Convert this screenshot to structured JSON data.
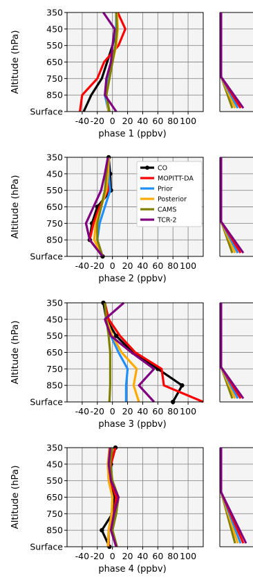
{
  "chart_data": [
    {
      "type": "line",
      "title": "",
      "xlabel": "phase 1 (ppbv)",
      "ylabel": "Altitude (hPa)",
      "xlim": [
        -60,
        120
      ],
      "levels": [
        "Surface",
        "850",
        "750",
        "650",
        "550",
        "450",
        "350"
      ],
      "xticks": [
        -40,
        -20,
        0,
        20,
        40,
        60,
        80,
        100
      ],
      "grid": true,
      "legend": "none",
      "series": [
        {
          "name": "CO",
          "color": "#000000",
          "marker": "none",
          "values": [
            -38,
            -28,
            -14,
            -7,
            0,
            5,
            5
          ]
        },
        {
          "name": "MOPITT-DA",
          "color": "#ff0000",
          "values": [
            -43,
            -40,
            -20,
            -11,
            8,
            17,
            7
          ]
        },
        {
          "name": "Prior",
          "color": "#1f8fff",
          "values": [
            -5,
            -10,
            -5,
            0,
            4,
            5,
            5
          ]
        },
        {
          "name": "Posterior",
          "color": "#ffaa00",
          "values": [
            -5,
            -8,
            -4,
            0,
            5,
            7,
            6
          ]
        },
        {
          "name": "CAMS",
          "color": "#808000",
          "values": [
            -4,
            -8,
            -4,
            0,
            4,
            6,
            5
          ]
        },
        {
          "name": "TCR-2",
          "color": "#800080",
          "values": [
            5,
            -10,
            -8,
            -2,
            0,
            3,
            -12
          ]
        }
      ]
    },
    {
      "type": "line",
      "title": "",
      "xlabel": "phase 2 (ppbv)",
      "ylabel": "Altitude (hPa)",
      "xlim": [
        -60,
        120
      ],
      "levels": [
        "Surface",
        "850",
        "750",
        "650",
        "550",
        "450",
        "350"
      ],
      "xticks": [
        -40,
        -20,
        0,
        20,
        40,
        60,
        80,
        100
      ],
      "grid": true,
      "legend": "top-right",
      "series": [
        {
          "name": "CO",
          "color": "#000000",
          "marker": "o",
          "values": [
            -13,
            -30,
            -27,
            -20,
            -2,
            -3,
            -5
          ]
        },
        {
          "name": "MOPITT-DA",
          "color": "#ff0000",
          "values": [
            -13,
            -30,
            -25,
            -17,
            -6,
            -5,
            -5
          ]
        },
        {
          "name": "Prior",
          "color": "#1f8fff",
          "values": [
            -13,
            -20,
            -17,
            -10,
            -3,
            -5,
            -5
          ]
        },
        {
          "name": "Posterior",
          "color": "#ffaa00",
          "values": [
            -13,
            -24,
            -22,
            -15,
            -8,
            -6,
            -5
          ]
        },
        {
          "name": "CAMS",
          "color": "#808000",
          "values": [
            -13,
            -20,
            -20,
            -15,
            -10,
            -8,
            -6
          ]
        },
        {
          "name": "TCR-2",
          "color": "#800080",
          "values": [
            -13,
            -30,
            -35,
            -25,
            -15,
            -10,
            -6
          ]
        }
      ]
    },
    {
      "type": "line",
      "title": "",
      "xlabel": "phase 3 (ppbv)",
      "ylabel": "Altitude (hPa)",
      "xlim": [
        -60,
        120
      ],
      "levels": [
        "Surface",
        "850",
        "750",
        "650",
        "550",
        "450",
        "350"
      ],
      "xticks": [
        -40,
        -20,
        0,
        20,
        40,
        60,
        80,
        100
      ],
      "grid": true,
      "legend": "none",
      "series": [
        {
          "name": "CO",
          "color": "#000000",
          "marker": "o",
          "values": [
            80,
            92,
            60,
            27,
            5,
            -8,
            -12
          ]
        },
        {
          "name": "MOPITT-DA",
          "color": "#ff0000",
          "values": [
            120,
            68,
            65,
            30,
            10,
            -5,
            -10
          ]
        },
        {
          "name": "Prior",
          "color": "#1f8fff",
          "values": [
            18,
            18,
            20,
            8,
            -2,
            -8,
            -10
          ]
        },
        {
          "name": "Posterior",
          "color": "#ffaa00",
          "values": [
            35,
            28,
            32,
            12,
            0,
            -8,
            -10
          ]
        },
        {
          "name": "CAMS",
          "color": "#808000",
          "values": [
            -4,
            -3,
            -3,
            -3,
            -5,
            -8,
            -10
          ]
        },
        {
          "name": "TCR-2",
          "color": "#800080",
          "values": [
            55,
            35,
            55,
            25,
            -2,
            -10,
            15
          ]
        }
      ]
    },
    {
      "type": "line",
      "title": "",
      "xlabel": "phase 4 (ppbv)",
      "ylabel": "Altitude (hPa)",
      "xlim": [
        -60,
        120
      ],
      "levels": [
        "Surface",
        "850",
        "750",
        "650",
        "550",
        "450",
        "350"
      ],
      "xticks": [
        -40,
        -20,
        0,
        20,
        40,
        60,
        80,
        100
      ],
      "grid": true,
      "legend": "none",
      "series": [
        {
          "name": "CO",
          "color": "#000000",
          "marker": "o",
          "values": [
            -4,
            -14,
            0,
            3,
            -3,
            -2,
            4
          ]
        },
        {
          "name": "MOPITT-DA",
          "color": "#ff0000",
          "values": [
            -5,
            -5,
            2,
            5,
            -3,
            -2,
            4
          ]
        },
        {
          "name": "Prior",
          "color": "#1f8fff",
          "values": [
            -6,
            -5,
            -1,
            0,
            -5,
            -6,
            -4
          ]
        },
        {
          "name": "Posterior",
          "color": "#ffaa00",
          "values": [
            -6,
            -5,
            -1,
            0,
            -5,
            -6,
            -4
          ]
        },
        {
          "name": "CAMS",
          "color": "#808000",
          "values": [
            6,
            0,
            5,
            8,
            0,
            -3,
            0
          ]
        },
        {
          "name": "TCR-2",
          "color": "#800080",
          "values": [
            5,
            -2,
            2,
            8,
            -2,
            -5,
            -3
          ]
        }
      ]
    }
  ]
}
